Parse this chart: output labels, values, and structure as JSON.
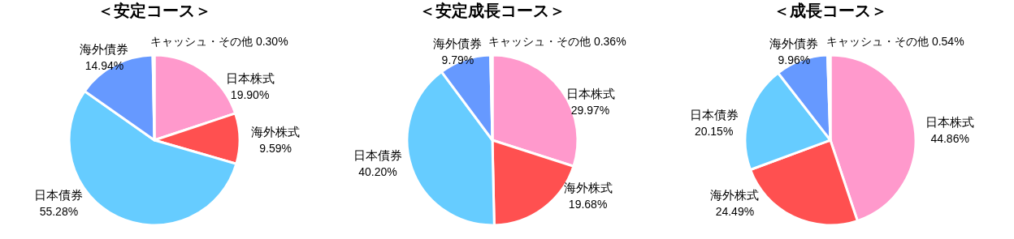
{
  "chart_data": [
    {
      "type": "pie",
      "title": "＜安定コース＞",
      "categories": [
        "日本株式",
        "海外株式",
        "日本債券",
        "海外債券",
        "キャッシュ・その他"
      ],
      "values": [
        19.9,
        9.59,
        55.28,
        14.94,
        0.3
      ],
      "value_labels": [
        "19.90%",
        "9.59%",
        "55.28%",
        "14.94%",
        "0.30%"
      ],
      "colors": [
        "#ff99cc",
        "#ff5050",
        "#66ccff",
        "#6699ff",
        "#ffffff"
      ]
    },
    {
      "type": "pie",
      "title": "＜安定成長コース＞",
      "categories": [
        "日本株式",
        "海外株式",
        "日本債券",
        "海外債券",
        "キャッシュ・その他"
      ],
      "values": [
        29.97,
        19.68,
        40.2,
        9.79,
        0.36
      ],
      "value_labels": [
        "29.97%",
        "19.68%",
        "40.20%",
        "9.79%",
        "0.36%"
      ],
      "colors": [
        "#ff99cc",
        "#ff5050",
        "#66ccff",
        "#6699ff",
        "#ffffff"
      ]
    },
    {
      "type": "pie",
      "title": "＜成長コース＞",
      "categories": [
        "日本株式",
        "海外株式",
        "日本債券",
        "海外債券",
        "キャッシュ・その他"
      ],
      "values": [
        44.86,
        24.49,
        20.15,
        9.96,
        0.54
      ],
      "value_labels": [
        "44.86%",
        "24.49%",
        "20.15%",
        "9.96%",
        "0.54%"
      ],
      "colors": [
        "#ff99cc",
        "#ff5050",
        "#66ccff",
        "#6699ff",
        "#ffffff"
      ]
    }
  ]
}
